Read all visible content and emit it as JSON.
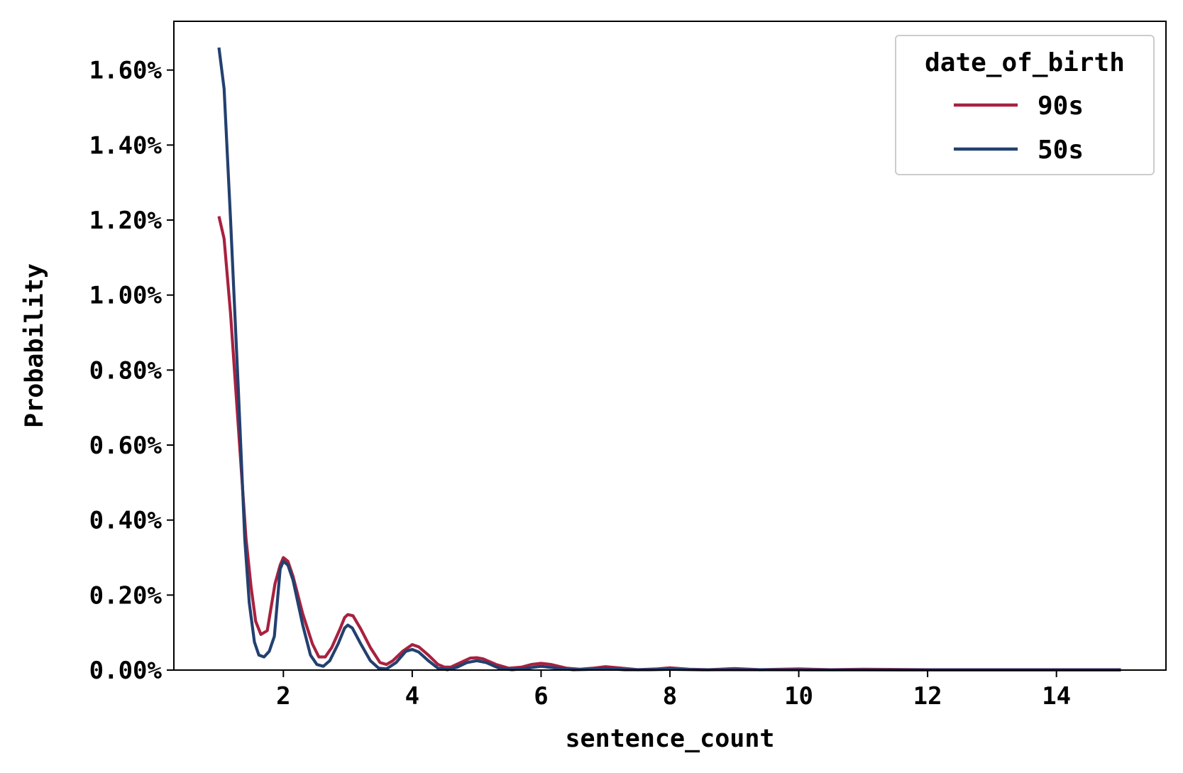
{
  "chart_data": {
    "type": "line",
    "title": "",
    "xlabel": "sentence_count",
    "ylabel": "Probability",
    "xlim": [
      0.3,
      15.7
    ],
    "ylim": [
      0,
      0.0173
    ],
    "x_ticks": [
      2,
      4,
      6,
      8,
      10,
      12,
      14
    ],
    "x_tick_labels": [
      "2",
      "4",
      "6",
      "8",
      "10",
      "12",
      "14"
    ],
    "y_ticks": [
      0,
      0.002,
      0.004,
      0.006,
      0.008,
      0.01,
      0.012,
      0.014,
      0.016
    ],
    "y_tick_labels": [
      "0.00%",
      "0.20%",
      "0.40%",
      "0.60%",
      "0.80%",
      "1.00%",
      "1.20%",
      "1.40%",
      "1.60%"
    ],
    "grid": false,
    "legend": {
      "title": "date_of_birth",
      "placement": "top-right"
    },
    "series": [
      {
        "name": "90s",
        "color": "#a8213f",
        "points": [
          [
            1.0,
            0.0121
          ],
          [
            1.08,
            0.0115
          ],
          [
            1.18,
            0.0095
          ],
          [
            1.3,
            0.0065
          ],
          [
            1.42,
            0.0035
          ],
          [
            1.5,
            0.0022
          ],
          [
            1.57,
            0.0013
          ],
          [
            1.65,
            0.00095
          ],
          [
            1.75,
            0.00105
          ],
          [
            1.87,
            0.0023
          ],
          [
            1.95,
            0.0028
          ],
          [
            2.0,
            0.003
          ],
          [
            2.07,
            0.0029
          ],
          [
            2.15,
            0.0025
          ],
          [
            2.3,
            0.0015
          ],
          [
            2.45,
            0.0007
          ],
          [
            2.55,
            0.00035
          ],
          [
            2.65,
            0.00035
          ],
          [
            2.75,
            0.0006
          ],
          [
            2.88,
            0.0011
          ],
          [
            2.95,
            0.0014
          ],
          [
            3.0,
            0.00148
          ],
          [
            3.08,
            0.00145
          ],
          [
            3.2,
            0.0011
          ],
          [
            3.35,
            0.0006
          ],
          [
            3.5,
            0.0002
          ],
          [
            3.6,
            0.00015
          ],
          [
            3.7,
            0.00025
          ],
          [
            3.85,
            0.0005
          ],
          [
            4.0,
            0.00068
          ],
          [
            4.1,
            0.00062
          ],
          [
            4.25,
            0.0004
          ],
          [
            4.4,
            0.00015
          ],
          [
            4.5,
            8e-05
          ],
          [
            4.6,
            8e-05
          ],
          [
            4.75,
            0.0002
          ],
          [
            4.9,
            0.00032
          ],
          [
            5.0,
            0.00033
          ],
          [
            5.1,
            0.0003
          ],
          [
            5.3,
            0.00015
          ],
          [
            5.5,
            5e-05
          ],
          [
            5.7,
            8e-05
          ],
          [
            5.85,
            0.00015
          ],
          [
            6.0,
            0.00018
          ],
          [
            6.15,
            0.00015
          ],
          [
            6.4,
            5e-05
          ],
          [
            6.6,
            2e-05
          ],
          [
            6.8,
            5e-05
          ],
          [
            7.0,
            9e-05
          ],
          [
            7.2,
            6e-05
          ],
          [
            7.5,
            1e-05
          ],
          [
            7.8,
            3e-05
          ],
          [
            8.0,
            6e-05
          ],
          [
            8.3,
            2e-05
          ],
          [
            8.6,
            1e-05
          ],
          [
            9.0,
            4e-05
          ],
          [
            9.4,
            1e-05
          ],
          [
            10.0,
            3e-05
          ],
          [
            10.5,
            1e-05
          ],
          [
            11.0,
            2e-05
          ],
          [
            12.0,
            1e-05
          ],
          [
            13.0,
            1e-05
          ],
          [
            14.0,
            1e-05
          ],
          [
            15.0,
            1e-05
          ]
        ]
      },
      {
        "name": "50s",
        "color": "#23406f",
        "points": [
          [
            1.0,
            0.0166
          ],
          [
            1.08,
            0.0155
          ],
          [
            1.18,
            0.012
          ],
          [
            1.3,
            0.0075
          ],
          [
            1.4,
            0.0035
          ],
          [
            1.47,
            0.0018
          ],
          [
            1.55,
            0.00075
          ],
          [
            1.62,
            0.0004
          ],
          [
            1.7,
            0.00035
          ],
          [
            1.78,
            0.0005
          ],
          [
            1.86,
            0.0009
          ],
          [
            1.95,
            0.0027
          ],
          [
            2.0,
            0.0029
          ],
          [
            2.07,
            0.0028
          ],
          [
            2.15,
            0.0024
          ],
          [
            2.3,
            0.0012
          ],
          [
            2.42,
            0.0004
          ],
          [
            2.52,
            0.00015
          ],
          [
            2.62,
            0.0001
          ],
          [
            2.72,
            0.00025
          ],
          [
            2.85,
            0.0007
          ],
          [
            2.95,
            0.00112
          ],
          [
            3.0,
            0.0012
          ],
          [
            3.07,
            0.00112
          ],
          [
            3.2,
            0.0007
          ],
          [
            3.35,
            0.00025
          ],
          [
            3.48,
            5e-05
          ],
          [
            3.6,
            3e-05
          ],
          [
            3.75,
            0.0002
          ],
          [
            3.9,
            0.0005
          ],
          [
            4.0,
            0.00055
          ],
          [
            4.1,
            0.00048
          ],
          [
            4.25,
            0.00025
          ],
          [
            4.4,
            5e-05
          ],
          [
            4.55,
            1e-05
          ],
          [
            4.7,
            8e-05
          ],
          [
            4.85,
            0.0002
          ],
          [
            5.0,
            0.00025
          ],
          [
            5.15,
            0.0002
          ],
          [
            5.35,
            5e-05
          ],
          [
            5.55,
            1e-05
          ],
          [
            5.75,
            4e-05
          ],
          [
            5.9,
            8e-05
          ],
          [
            6.0,
            0.0001
          ],
          [
            6.2,
            6e-05
          ],
          [
            6.5,
            1e-05
          ],
          [
            6.8,
            2e-05
          ],
          [
            7.0,
            4e-05
          ],
          [
            7.3,
            1e-05
          ],
          [
            7.7,
            1e-05
          ],
          [
            8.0,
            2e-05
          ],
          [
            8.5,
            5e-06
          ],
          [
            9.0,
            1e-05
          ],
          [
            10.0,
            5e-06
          ],
          [
            11.0,
            3e-06
          ],
          [
            12.0,
            2e-06
          ],
          [
            13.0,
            2e-06
          ],
          [
            14.0,
            1e-06
          ],
          [
            15.0,
            1e-06
          ]
        ]
      }
    ]
  }
}
